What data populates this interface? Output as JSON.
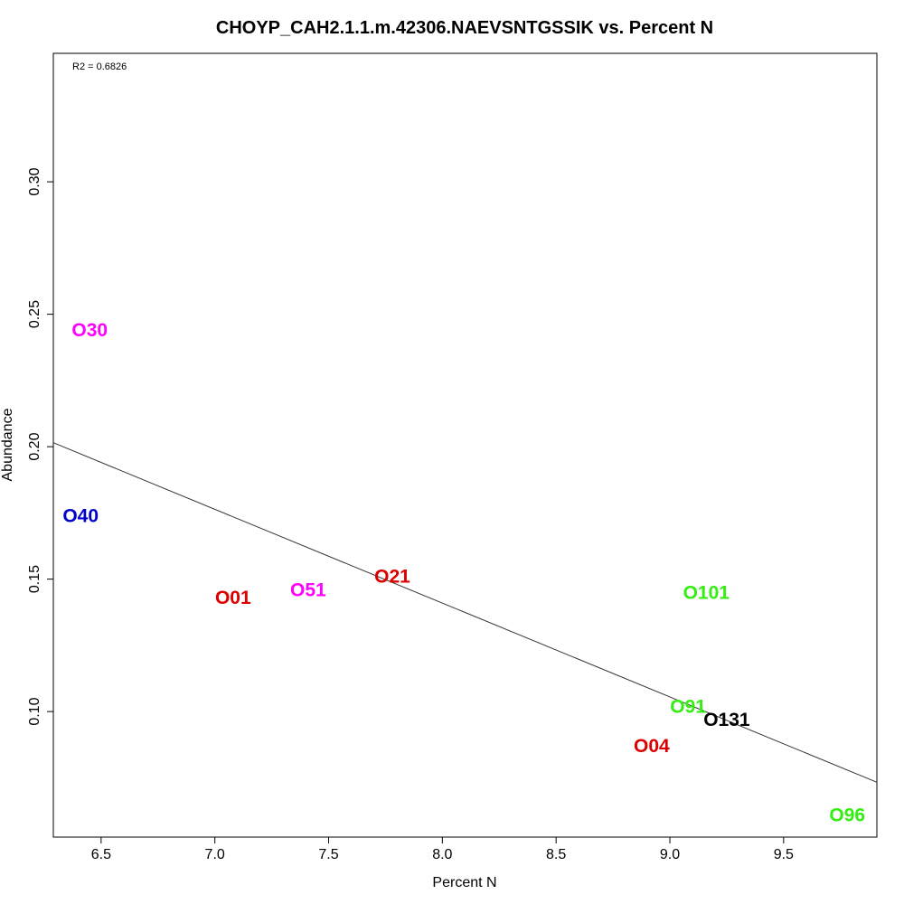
{
  "chart_data": {
    "type": "scatter",
    "title": "CHOYP_CAH2.1.1.m.42306.NAEVSNTGSSIK vs. Percent N",
    "xlabel": "Percent N",
    "ylabel": "Abundance",
    "xlim": [
      6.29,
      9.91
    ],
    "ylim": [
      0.0526,
      0.3485
    ],
    "xticks": [
      6.5,
      7.0,
      7.5,
      8.0,
      8.5,
      9.0,
      9.5
    ],
    "yticks": [
      0.1,
      0.15,
      0.2,
      0.25,
      0.3
    ],
    "xtick_labels": [
      "6.5",
      "7.0",
      "7.5",
      "8.0",
      "8.5",
      "9.0",
      "9.5"
    ],
    "ytick_labels": [
      "0.10",
      "0.15",
      "0.20",
      "0.25",
      "0.30"
    ],
    "annotation": "R2 = 0.6826",
    "grid": false,
    "points": [
      {
        "label": "O30",
        "x": 6.45,
        "y": 0.244,
        "color": "#ff00ff"
      },
      {
        "label": "O40",
        "x": 6.41,
        "y": 0.174,
        "color": "#0000cc"
      },
      {
        "label": "O01",
        "x": 7.08,
        "y": 0.143,
        "color": "#dd0000"
      },
      {
        "label": "O51",
        "x": 7.41,
        "y": 0.146,
        "color": "#ff00ff"
      },
      {
        "label": "O21",
        "x": 7.78,
        "y": 0.151,
        "color": "#dd0000"
      },
      {
        "label": "O101",
        "x": 9.16,
        "y": 0.145,
        "color": "#33ee11"
      },
      {
        "label": "O91",
        "x": 9.08,
        "y": 0.102,
        "color": "#33ee11"
      },
      {
        "label": "O131",
        "x": 9.25,
        "y": 0.097,
        "color": "#000000"
      },
      {
        "label": "O04",
        "x": 8.92,
        "y": 0.087,
        "color": "#dd0000"
      },
      {
        "label": "O96",
        "x": 9.78,
        "y": 0.061,
        "color": "#33ee11"
      }
    ],
    "fit_line": {
      "x": [
        6.29,
        9.91
      ],
      "y": [
        0.2015,
        0.0733
      ],
      "color": "#333333"
    }
  }
}
